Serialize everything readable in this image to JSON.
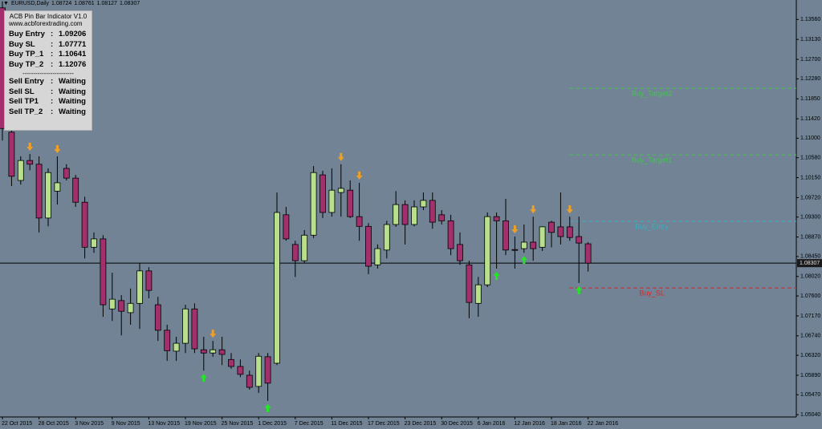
{
  "chart_data": {
    "type": "candlestick",
    "symbol": "EURUSD,Daily",
    "categories": [
      "22 Oct 2015",
      null,
      null,
      null,
      "28 Oct 2015",
      null,
      null,
      null,
      "3 Nov 2015",
      null,
      null,
      null,
      "9 Nov 2015",
      null,
      null,
      null,
      "13 Nov 2015",
      null,
      null,
      null,
      "19 Nov 2015",
      null,
      null,
      null,
      "25 Nov 2015",
      null,
      null,
      null,
      "1 Dec 2015",
      null,
      null,
      null,
      "7 Dec 2015",
      null,
      null,
      null,
      "11 Dec 2015",
      null,
      null,
      null,
      "17 Dec 2015",
      null,
      null,
      null,
      "23 Dec 2015",
      null,
      null,
      null,
      "30 Dec 2015",
      null,
      null,
      null,
      "6 Jan 2016",
      null,
      null,
      null,
      "12 Jan 2016",
      null,
      null,
      null,
      "18 Jan 2016",
      null,
      null,
      null,
      "22 Jan 2016"
    ],
    "open": [
      1.1381,
      1.1113,
      1.1009,
      1.1052,
      1.1044,
      1.0928,
      1.0986,
      1.1035,
      1.1014,
      1.0962,
      1.0865,
      1.0883,
      1.0732,
      1.075,
      1.0724,
      1.0744,
      1.0814,
      1.0741,
      1.0686,
      1.0641,
      1.0658,
      1.0732,
      1.0644,
      1.0637,
      1.0644,
      1.0623,
      1.0608,
      1.0589,
      1.0565,
      1.0629,
      1.0615,
      1.0935,
      1.0871,
      1.0836,
      1.0891,
      1.1021,
      1.094,
      1.0983,
      1.0988,
      1.0931,
      1.091,
      1.0827,
      1.0859,
      1.0914,
      1.0957,
      1.0914,
      1.0952,
      1.0966,
      1.0935,
      1.0922,
      1.0871,
      1.0827,
      1.0744,
      1.0784,
      1.0931,
      1.0922,
      1.086,
      1.0862,
      1.0876,
      1.0865,
      1.0919,
      1.0909,
      1.0909,
      1.0888,
      1.08724
    ],
    "high": [
      1.1395,
      1.1121,
      1.1061,
      1.1066,
      1.1061,
      1.1035,
      1.1061,
      1.1044,
      1.1021,
      1.0974,
      1.0897,
      1.0891,
      1.081,
      1.0762,
      1.0776,
      1.0831,
      1.0822,
      1.0758,
      1.0698,
      1.0672,
      1.0741,
      1.0744,
      1.0672,
      1.0663,
      1.0672,
      1.0637,
      1.0623,
      1.0599,
      1.0637,
      1.0637,
      1.0983,
      1.0952,
      1.0879,
      1.0902,
      1.104,
      1.103,
      1.1035,
      1.1044,
      1.1009,
      1.1004,
      1.0917,
      1.0871,
      1.0922,
      1.0986,
      1.0966,
      1.0966,
      1.0983,
      1.0983,
      1.0945,
      1.0935,
      1.0897,
      1.0836,
      1.0801,
      1.094,
      1.094,
      1.0969,
      1.0888,
      1.0914,
      1.0931,
      1.091,
      1.0922,
      1.0983,
      1.0931,
      1.0931,
      1.08761
    ],
    "low": [
      1.1095,
      1.0997,
      1.1,
      1.1031,
      1.0897,
      1.091,
      1.0957,
      1.1009,
      1.0952,
      1.0841,
      1.0853,
      1.0715,
      1.0706,
      1.0675,
      1.0698,
      1.0689,
      1.0755,
      1.0663,
      1.062,
      1.062,
      1.0637,
      1.0637,
      1.0599,
      1.0629,
      1.0611,
      1.0603,
      1.0585,
      1.0558,
      1.0551,
      1.0534,
      1.0611,
      1.0879,
      1.0801,
      1.0831,
      1.0885,
      1.0928,
      1.0931,
      1.0931,
      1.0928,
      1.0879,
      1.0807,
      1.0819,
      1.0841,
      1.0909,
      1.0871,
      1.091,
      1.0945,
      1.0905,
      1.0914,
      1.0848,
      1.0827,
      1.0712,
      1.0715,
      1.0779,
      1.0819,
      1.0848,
      1.0819,
      1.0853,
      1.0836,
      1.0857,
      1.0865,
      1.0871,
      1.0879,
      1.0788,
      1.08127
    ],
    "close": [
      1.1121,
      1.1018,
      1.1052,
      1.1044,
      1.0928,
      1.1026,
      1.1004,
      1.1014,
      1.0962,
      1.0865,
      1.0883,
      1.0741,
      1.0753,
      1.0727,
      1.0744,
      1.0814,
      1.0772,
      1.0686,
      1.0642,
      1.0658,
      1.0732,
      1.0646,
      1.0637,
      1.0644,
      1.0634,
      1.0608,
      1.0591,
      1.0563,
      1.063,
      1.0572,
      1.094,
      1.0883,
      1.0836,
      1.0891,
      1.1026,
      1.094,
      1.0988,
      1.0992,
      1.0931,
      1.091,
      1.0824,
      1.0862,
      1.0914,
      1.0957,
      1.0914,
      1.0952,
      1.0966,
      1.0919,
      1.0922,
      1.0862,
      1.0836,
      1.0746,
      1.0784,
      1.0931,
      1.0922,
      1.0859,
      1.0859,
      1.0876,
      1.0862,
      1.0909,
      1.0897,
      1.0888,
      1.0886,
      1.0874,
      1.08307
    ],
    "up_color": "#b8e08c",
    "down_color": "#a3306c",
    "signals": {
      "sell": [
        3,
        6,
        23,
        37,
        39,
        56,
        58,
        62
      ],
      "buy": [
        22,
        29,
        54,
        57,
        63
      ],
      "sell_color": "#f0a024",
      "buy_color": "#22e822"
    },
    "levels": [
      {
        "name": "Buy_Target2",
        "value": 1.12076,
        "color": "#3ec84a"
      },
      {
        "name": "Buy_Target1",
        "value": 1.10641,
        "color": "#3ec84a"
      },
      {
        "name": "Buy_Entry",
        "value": 1.09206,
        "color": "#3aaec4"
      },
      {
        "name": "Buy_SL",
        "value": 1.07771,
        "color": "#e42424"
      }
    ],
    "ylim": [
      1.0487,
      1.1398
    ],
    "yticks": [
      {
        "value": 1.1356,
        "label": "1.13560"
      },
      {
        "value": 1.1313,
        "label": "1.13130"
      },
      {
        "value": 1.127,
        "label": "1.12700"
      },
      {
        "value": 1.1228,
        "label": "1.12280"
      },
      {
        "value": 1.1185,
        "label": "1.11850"
      },
      {
        "value": 1.1142,
        "label": "1.11420"
      },
      {
        "value": 1.11,
        "label": "1.11000"
      },
      {
        "value": 1.1058,
        "label": "1.10580"
      },
      {
        "value": 1.1015,
        "label": "1.10150"
      },
      {
        "value": 1.0972,
        "label": "1.09720"
      },
      {
        "value": 1.093,
        "label": "1.09300"
      },
      {
        "value": 1.0887,
        "label": "1.08870"
      },
      {
        "value": 1.0845,
        "label": "1.08450"
      },
      {
        "value": 1.0802,
        "label": "1.08020"
      },
      {
        "value": 1.076,
        "label": "1.07600"
      },
      {
        "value": 1.0717,
        "label": "1.07170"
      },
      {
        "value": 1.0674,
        "label": "1.06740"
      },
      {
        "value": 1.0632,
        "label": "1.06320"
      },
      {
        "value": 1.0589,
        "label": "1.05890"
      },
      {
        "value": 1.0547,
        "label": "1.05470"
      },
      {
        "value": 1.0504,
        "label": "1.05040"
      }
    ]
  },
  "panel": {
    "title": "ACB Pin Bar Indicator V1.0",
    "website": "www.acbforextrading.com",
    "colon": ":",
    "separator": "------------------------",
    "buy_rows": [
      "Buy Entry",
      "Buy SL",
      "Buy TP_1",
      "Buy TP_2"
    ],
    "sell_rows": [
      {
        "label": "Sell Entry",
        "status": "Waiting"
      },
      {
        "label": "Sell SL",
        "status": "Waiting"
      },
      {
        "label": "Sell TP1",
        "status": "Waiting"
      },
      {
        "label": "Sell TP_2",
        "status": "Waiting"
      }
    ]
  }
}
